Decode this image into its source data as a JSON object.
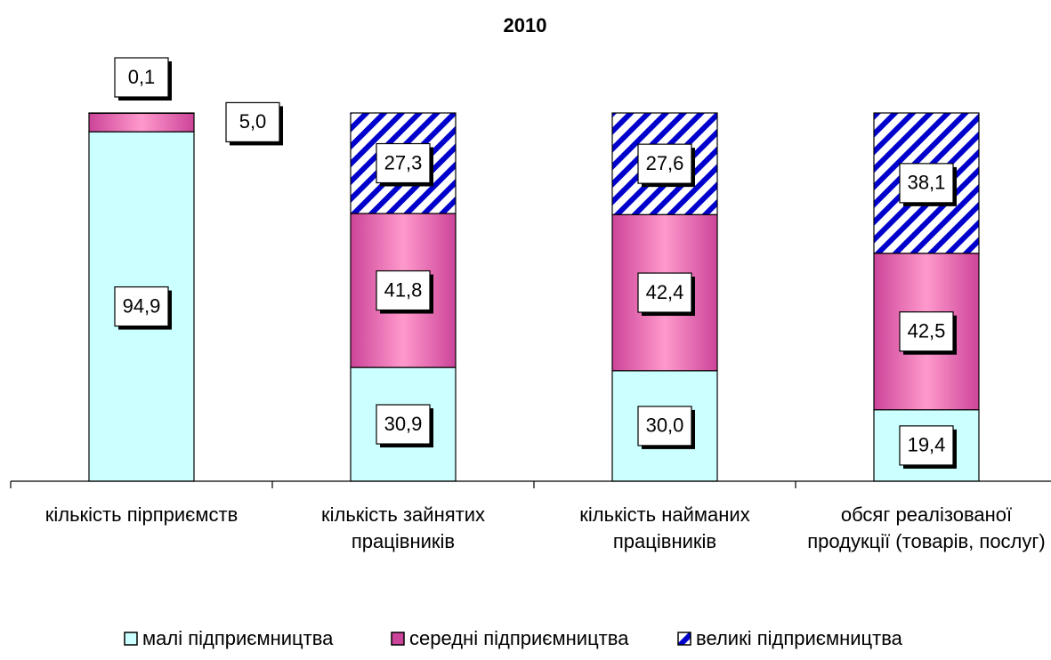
{
  "chart_data": {
    "type": "stacked_bar",
    "title": "2010",
    "categories": [
      "кількість пірприємств",
      "кількість зайнятих працівників",
      "кількість найманих працівників",
      "обсяг реалізованої продукції (товарів, послуг)"
    ],
    "ylim": [
      0,
      100
    ],
    "series": [
      {
        "name": "малі підприємництва",
        "color": "#ccffff",
        "values": [
          94.9,
          30.9,
          30.0,
          19.4
        ],
        "value_labels": [
          "94,9",
          "30,9",
          "30,0",
          "19,4"
        ]
      },
      {
        "name": "середні підприємництва",
        "color": "#cc4499",
        "values": [
          5.0,
          41.8,
          42.4,
          42.5
        ],
        "value_labels": [
          "5,0",
          "41,8",
          "42,4",
          "42,5"
        ]
      },
      {
        "name": "великі підприємництва",
        "color": "#0000cc",
        "pattern": "hatch",
        "values": [
          0.1,
          27.3,
          27.6,
          38.1
        ],
        "value_labels": [
          "0,1",
          "27,3",
          "27,6",
          "38,1"
        ]
      }
    ]
  }
}
